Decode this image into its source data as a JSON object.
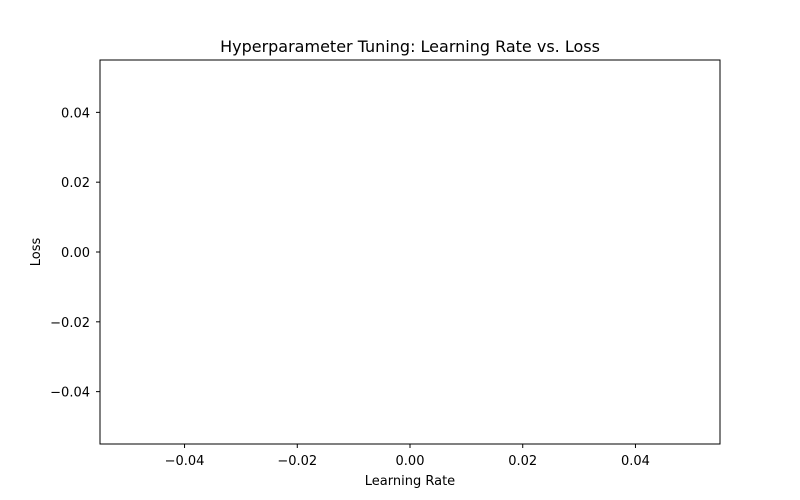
{
  "chart_data": {
    "type": "line",
    "title": "Hyperparameter Tuning: Learning Rate vs. Loss",
    "xlabel": "Learning Rate",
    "ylabel": "Loss",
    "xlim": [
      -0.055,
      0.055
    ],
    "ylim": [
      -0.055,
      0.055
    ],
    "x_ticks": [
      -0.04,
      -0.02,
      0.0,
      0.02,
      0.04
    ],
    "y_ticks": [
      -0.04,
      -0.02,
      0.0,
      0.02,
      0.04
    ],
    "x_tick_labels": [
      "−0.04",
      "−0.02",
      "0.00",
      "0.02",
      "0.04"
    ],
    "y_tick_labels": [
      "−0.04",
      "−0.02",
      "0.00",
      "0.02",
      "0.04"
    ],
    "series": [],
    "grid": false,
    "colors": {
      "axis": "#000000",
      "background": "#ffffff"
    }
  }
}
